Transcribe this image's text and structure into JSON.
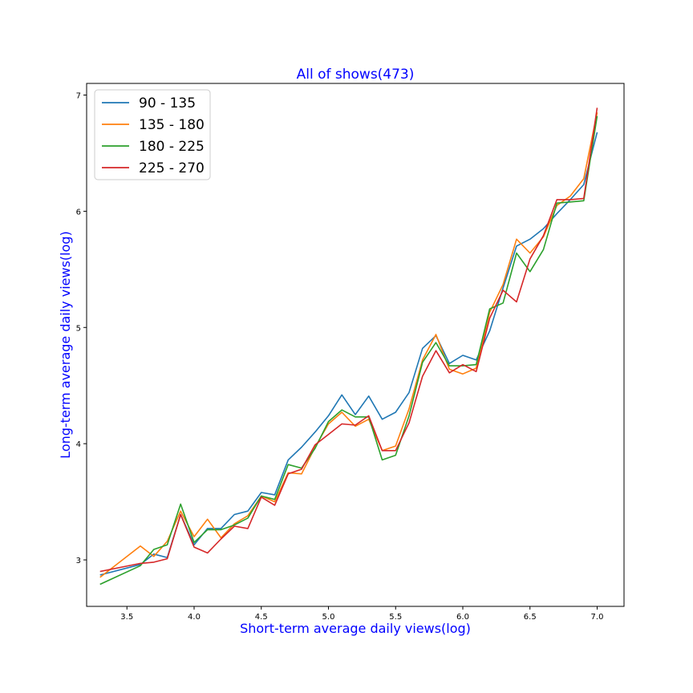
{
  "chart_data": {
    "type": "line",
    "title": "All of shows(473)",
    "xlabel": "Short-term average daily views(log)",
    "ylabel": "Long-term average daily views(log)",
    "xlim": [
      3.2,
      7.2
    ],
    "ylim": [
      2.6,
      7.1
    ],
    "x_ticks": [
      3.5,
      4.0,
      4.5,
      5.0,
      5.5,
      6.0,
      6.5,
      7.0
    ],
    "x_tick_labels": [
      "3.5",
      "4.0",
      "4.5",
      "5.0",
      "5.5",
      "6.0",
      "6.5",
      "7.0"
    ],
    "y_ticks": [
      3,
      4,
      5,
      6,
      7
    ],
    "y_tick_labels": [
      "3",
      "4",
      "5",
      "6",
      "7"
    ],
    "grid": false,
    "legend_position": "top-left",
    "series": [
      {
        "name": "90 - 135",
        "color": "#1f77b4",
        "points": [
          [
            3.3,
            2.87
          ],
          [
            3.6,
            2.96
          ],
          [
            3.7,
            3.05
          ],
          [
            3.8,
            3.02
          ],
          [
            3.9,
            3.39
          ],
          [
            4.0,
            3.13
          ],
          [
            4.1,
            3.27
          ],
          [
            4.2,
            3.27
          ],
          [
            4.3,
            3.39
          ],
          [
            4.4,
            3.42
          ],
          [
            4.5,
            3.58
          ],
          [
            4.6,
            3.56
          ],
          [
            4.7,
            3.86
          ],
          [
            4.8,
            3.97
          ],
          [
            4.9,
            4.1
          ],
          [
            5.0,
            4.24
          ],
          [
            5.1,
            4.42
          ],
          [
            5.2,
            4.25
          ],
          [
            5.3,
            4.41
          ],
          [
            5.4,
            4.21
          ],
          [
            5.5,
            4.27
          ],
          [
            5.6,
            4.44
          ],
          [
            5.7,
            4.82
          ],
          [
            5.8,
            4.93
          ],
          [
            5.9,
            4.69
          ],
          [
            6.0,
            4.76
          ],
          [
            6.1,
            4.72
          ],
          [
            6.2,
            4.97
          ],
          [
            6.3,
            5.34
          ],
          [
            6.4,
            5.7
          ],
          [
            6.5,
            5.76
          ],
          [
            6.6,
            5.85
          ],
          [
            6.7,
            5.98
          ],
          [
            6.8,
            6.1
          ],
          [
            6.9,
            6.23
          ],
          [
            7.0,
            6.68
          ]
        ]
      },
      {
        "name": "135 - 180",
        "color": "#ff7f0e",
        "points": [
          [
            3.3,
            2.85
          ],
          [
            3.6,
            3.12
          ],
          [
            3.7,
            3.03
          ],
          [
            3.8,
            3.16
          ],
          [
            3.9,
            3.42
          ],
          [
            4.0,
            3.2
          ],
          [
            4.1,
            3.35
          ],
          [
            4.2,
            3.19
          ],
          [
            4.3,
            3.31
          ],
          [
            4.4,
            3.38
          ],
          [
            4.5,
            3.55
          ],
          [
            4.6,
            3.5
          ],
          [
            4.7,
            3.75
          ],
          [
            4.8,
            3.74
          ],
          [
            4.9,
            3.97
          ],
          [
            5.0,
            4.17
          ],
          [
            5.1,
            4.27
          ],
          [
            5.2,
            4.15
          ],
          [
            5.3,
            4.21
          ],
          [
            5.4,
            3.94
          ],
          [
            5.5,
            3.98
          ],
          [
            5.6,
            4.3
          ],
          [
            5.7,
            4.72
          ],
          [
            5.8,
            4.94
          ],
          [
            5.9,
            4.64
          ],
          [
            6.0,
            4.6
          ],
          [
            6.1,
            4.65
          ],
          [
            6.2,
            5.13
          ],
          [
            6.3,
            5.37
          ],
          [
            6.4,
            5.76
          ],
          [
            6.5,
            5.64
          ],
          [
            6.6,
            5.78
          ],
          [
            6.7,
            6.05
          ],
          [
            6.8,
            6.13
          ],
          [
            6.9,
            6.28
          ],
          [
            7.0,
            6.85
          ]
        ]
      },
      {
        "name": "180 - 225",
        "color": "#2ca02c",
        "points": [
          [
            3.3,
            2.79
          ],
          [
            3.6,
            2.95
          ],
          [
            3.7,
            3.09
          ],
          [
            3.8,
            3.13
          ],
          [
            3.9,
            3.48
          ],
          [
            4.0,
            3.15
          ],
          [
            4.1,
            3.26
          ],
          [
            4.2,
            3.26
          ],
          [
            4.3,
            3.3
          ],
          [
            4.4,
            3.36
          ],
          [
            4.5,
            3.55
          ],
          [
            4.6,
            3.52
          ],
          [
            4.7,
            3.82
          ],
          [
            4.8,
            3.79
          ],
          [
            4.9,
            3.96
          ],
          [
            5.0,
            4.19
          ],
          [
            5.1,
            4.29
          ],
          [
            5.2,
            4.23
          ],
          [
            5.3,
            4.23
          ],
          [
            5.4,
            3.86
          ],
          [
            5.5,
            3.9
          ],
          [
            5.6,
            4.24
          ],
          [
            5.7,
            4.7
          ],
          [
            5.8,
            4.87
          ],
          [
            5.9,
            4.67
          ],
          [
            6.0,
            4.67
          ],
          [
            6.1,
            4.68
          ],
          [
            6.2,
            5.16
          ],
          [
            6.3,
            5.21
          ],
          [
            6.4,
            5.64
          ],
          [
            6.5,
            5.48
          ],
          [
            6.6,
            5.67
          ],
          [
            6.7,
            6.07
          ],
          [
            6.8,
            6.08
          ],
          [
            6.9,
            6.09
          ],
          [
            7.0,
            6.82
          ]
        ]
      },
      {
        "name": "225 - 270",
        "color": "#d62728",
        "points": [
          [
            3.3,
            2.9
          ],
          [
            3.6,
            2.97
          ],
          [
            3.7,
            2.98
          ],
          [
            3.8,
            3.01
          ],
          [
            3.9,
            3.39
          ],
          [
            4.0,
            3.11
          ],
          [
            4.1,
            3.06
          ],
          [
            4.2,
            3.18
          ],
          [
            4.3,
            3.29
          ],
          [
            4.4,
            3.27
          ],
          [
            4.5,
            3.54
          ],
          [
            4.6,
            3.47
          ],
          [
            4.7,
            3.74
          ],
          [
            4.8,
            3.78
          ],
          [
            4.9,
            3.99
          ],
          [
            5.0,
            4.08
          ],
          [
            5.1,
            4.17
          ],
          [
            5.2,
            4.16
          ],
          [
            5.3,
            4.24
          ],
          [
            5.4,
            3.94
          ],
          [
            5.5,
            3.94
          ],
          [
            5.6,
            4.18
          ],
          [
            5.7,
            4.58
          ],
          [
            5.8,
            4.8
          ],
          [
            5.9,
            4.61
          ],
          [
            6.0,
            4.68
          ],
          [
            6.1,
            4.62
          ],
          [
            6.2,
            5.08
          ],
          [
            6.3,
            5.32
          ],
          [
            6.4,
            5.22
          ],
          [
            6.5,
            5.59
          ],
          [
            6.6,
            5.79
          ],
          [
            6.7,
            6.1
          ],
          [
            6.8,
            6.1
          ],
          [
            6.9,
            6.11
          ],
          [
            7.0,
            6.89
          ]
        ]
      }
    ]
  }
}
